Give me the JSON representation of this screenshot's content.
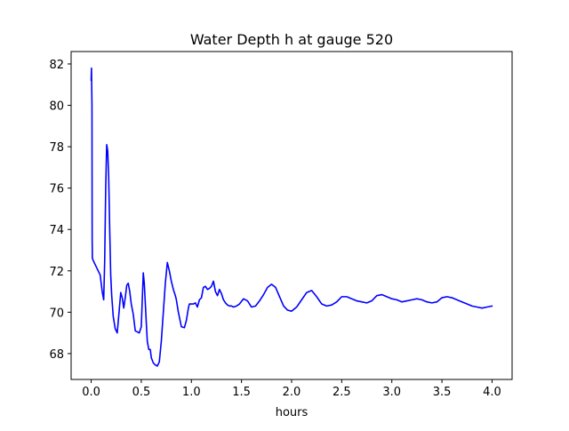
{
  "chart_data": {
    "type": "line",
    "title": "Water Depth h at gauge 520",
    "xlabel": "hours",
    "ylabel": "",
    "xlim": [
      -0.2,
      4.2
    ],
    "ylim": [
      66.75,
      82.6
    ],
    "xticks": [
      0.0,
      0.5,
      1.0,
      1.5,
      2.0,
      2.5,
      3.0,
      3.5,
      4.0
    ],
    "xtick_labels": [
      "0.0",
      "0.5",
      "1.0",
      "1.5",
      "2.0",
      "2.5",
      "3.0",
      "3.5",
      "4.0"
    ],
    "yticks": [
      68,
      70,
      72,
      74,
      76,
      78,
      80,
      82
    ],
    "ytick_labels": [
      "68",
      "70",
      "72",
      "74",
      "76",
      "78",
      "80",
      "82"
    ],
    "grid": false,
    "series": [
      {
        "color": "#0000ff",
        "x": [
          0.0,
          0.003,
          0.005,
          0.008,
          0.01,
          0.012,
          0.03,
          0.06,
          0.09,
          0.11,
          0.125,
          0.135,
          0.145,
          0.155,
          0.165,
          0.175,
          0.185,
          0.195,
          0.205,
          0.22,
          0.24,
          0.26,
          0.28,
          0.295,
          0.31,
          0.325,
          0.34,
          0.355,
          0.37,
          0.385,
          0.4,
          0.42,
          0.44,
          0.46,
          0.48,
          0.5,
          0.52,
          0.53,
          0.55,
          0.56,
          0.575,
          0.59,
          0.6,
          0.62,
          0.64,
          0.66,
          0.68,
          0.7,
          0.72,
          0.74,
          0.76,
          0.78,
          0.8,
          0.82,
          0.84,
          0.85,
          0.87,
          0.9,
          0.93,
          0.95,
          0.97,
          0.98,
          1.0,
          1.02,
          1.04,
          1.06,
          1.08,
          1.1,
          1.12,
          1.14,
          1.16,
          1.18,
          1.2,
          1.22,
          1.24,
          1.26,
          1.28,
          1.3,
          1.32,
          1.34,
          1.36,
          1.38,
          1.4,
          1.42,
          1.45,
          1.48,
          1.52,
          1.56,
          1.6,
          1.64,
          1.68,
          1.72,
          1.76,
          1.8,
          1.84,
          1.88,
          1.92,
          1.96,
          2.0,
          2.05,
          2.1,
          2.15,
          2.2,
          2.25,
          2.3,
          2.35,
          2.4,
          2.45,
          2.5,
          2.55,
          2.6,
          2.65,
          2.7,
          2.75,
          2.8,
          2.85,
          2.9,
          2.95,
          3.0,
          3.05,
          3.1,
          3.15,
          3.2,
          3.25,
          3.3,
          3.35,
          3.4,
          3.45,
          3.5,
          3.55,
          3.6,
          3.65,
          3.7,
          3.75,
          3.8,
          3.85,
          3.9,
          3.95,
          4.0
        ],
        "y": [
          81.2,
          81.8,
          81.1,
          80.0,
          73.5,
          72.6,
          72.4,
          72.1,
          71.8,
          71.0,
          70.6,
          72.5,
          76.0,
          78.1,
          77.8,
          76.5,
          74.0,
          71.8,
          70.8,
          69.8,
          69.2,
          69.0,
          70.1,
          70.95,
          70.7,
          70.2,
          70.7,
          71.3,
          71.4,
          71.0,
          70.4,
          69.9,
          69.1,
          69.05,
          69.0,
          69.3,
          71.9,
          71.4,
          69.5,
          68.6,
          68.2,
          68.2,
          67.8,
          67.55,
          67.45,
          67.4,
          67.6,
          68.6,
          70.0,
          71.4,
          72.4,
          72.0,
          71.5,
          71.1,
          70.8,
          70.6,
          70.0,
          69.3,
          69.25,
          69.6,
          70.2,
          70.4,
          70.4,
          70.4,
          70.45,
          70.25,
          70.6,
          70.7,
          71.2,
          71.25,
          71.1,
          71.15,
          71.25,
          71.5,
          71.0,
          70.8,
          71.1,
          70.9,
          70.6,
          70.45,
          70.35,
          70.3,
          70.3,
          70.25,
          70.3,
          70.4,
          70.65,
          70.55,
          70.25,
          70.3,
          70.55,
          70.85,
          71.2,
          71.35,
          71.2,
          70.75,
          70.3,
          70.1,
          70.05,
          70.25,
          70.6,
          70.95,
          71.05,
          70.75,
          70.4,
          70.3,
          70.35,
          70.5,
          70.75,
          70.75,
          70.65,
          70.55,
          70.5,
          70.45,
          70.55,
          70.8,
          70.85,
          70.75,
          70.65,
          70.6,
          70.5,
          70.55,
          70.6,
          70.65,
          70.6,
          70.5,
          70.45,
          70.5,
          70.7,
          70.75,
          70.7,
          70.6,
          70.5,
          70.4,
          70.3,
          70.25,
          70.2,
          70.25,
          70.3
        ]
      }
    ]
  }
}
